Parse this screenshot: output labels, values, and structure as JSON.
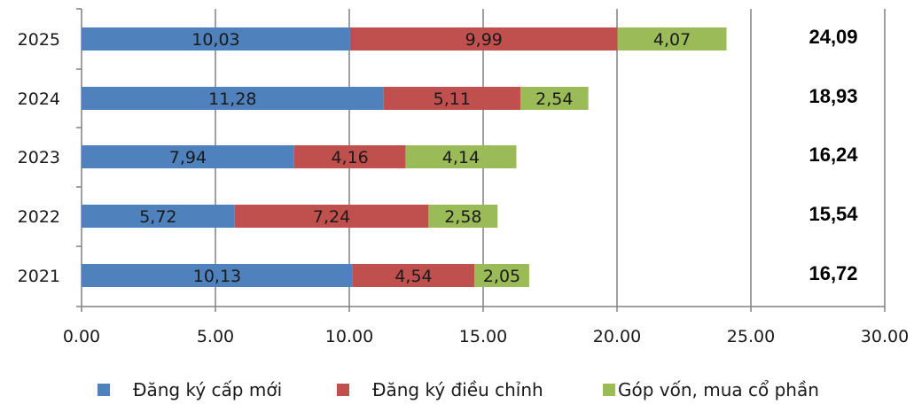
{
  "chart_data": {
    "type": "bar",
    "orientation": "horizontal",
    "stacked": true,
    "categories": [
      "2025",
      "2024",
      "2023",
      "2022",
      "2021"
    ],
    "series": [
      {
        "name": "Đăng ký cấp mới",
        "color": "#4F81BD",
        "values": [
          10.03,
          11.28,
          7.94,
          5.72,
          10.13
        ],
        "labels": [
          "10,03",
          "11,28",
          "7,94",
          "5,72",
          "10,13"
        ]
      },
      {
        "name": "Đăng ký điều chỉnh",
        "color": "#C0504D",
        "values": [
          9.99,
          5.11,
          4.16,
          7.24,
          4.54
        ],
        "labels": [
          "9,99",
          "5,11",
          "4,16",
          "7,24",
          "4,54"
        ]
      },
      {
        "name": "Góp vốn, mua cổ phần",
        "color": "#9BBB59",
        "values": [
          4.07,
          2.54,
          4.14,
          2.58,
          2.05
        ],
        "labels": [
          "4,07",
          "2,54",
          "4,14",
          "2,58",
          "2,05"
        ]
      }
    ],
    "totals": [
      "24,09",
      "18,93",
      "16,24",
      "15,54",
      "16,72"
    ],
    "xlim": [
      0,
      30
    ],
    "xticks": [
      0,
      5,
      10,
      15,
      20,
      25,
      30
    ],
    "xtick_labels": [
      "0.00",
      "5.00",
      "10.00",
      "15.00",
      "20.00",
      "25.00",
      "30.00"
    ],
    "grid": "vertical",
    "legend_position": "bottom",
    "title": "",
    "xlabel": "",
    "ylabel": ""
  }
}
